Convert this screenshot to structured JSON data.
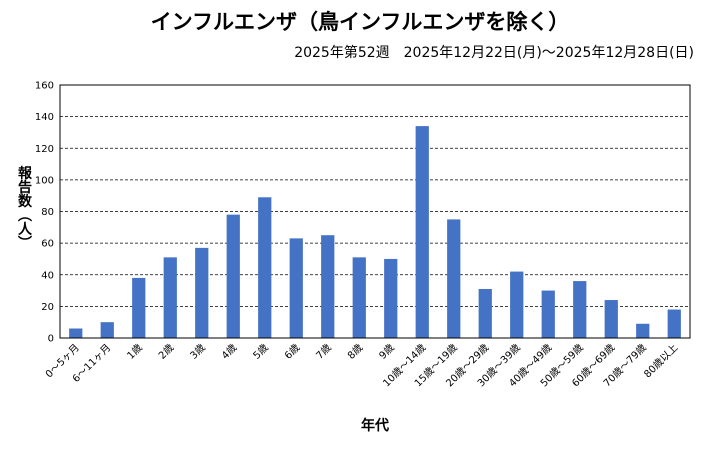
{
  "chart_data": {
    "type": "bar",
    "title": "インフルエンザ（鳥インフルエンザを除く）",
    "subtitle": "2025年第52週　2025年12月22日(月)～2025年12月28日(日)",
    "xlabel": "年代",
    "ylabel": "報告数（人）",
    "ylim": [
      0,
      160
    ],
    "yticks": [
      0,
      20,
      40,
      60,
      80,
      100,
      120,
      140,
      160
    ],
    "grid": true,
    "bar_color": "#4472c4",
    "categories": [
      "0～5ヶ月",
      "6～11ヶ月",
      "1歳",
      "2歳",
      "3歳",
      "4歳",
      "5歳",
      "6歳",
      "7歳",
      "8歳",
      "9歳",
      "10歳～14歳",
      "15歳～19歳",
      "20歳～29歳",
      "30歳～39歳",
      "40歳～49歳",
      "50歳～59歳",
      "60歳～69歳",
      "70歳～79歳",
      "80歳以上"
    ],
    "values": [
      6,
      10,
      38,
      51,
      57,
      78,
      89,
      63,
      65,
      51,
      50,
      134,
      75,
      31,
      42,
      30,
      36,
      24,
      9,
      18
    ]
  }
}
